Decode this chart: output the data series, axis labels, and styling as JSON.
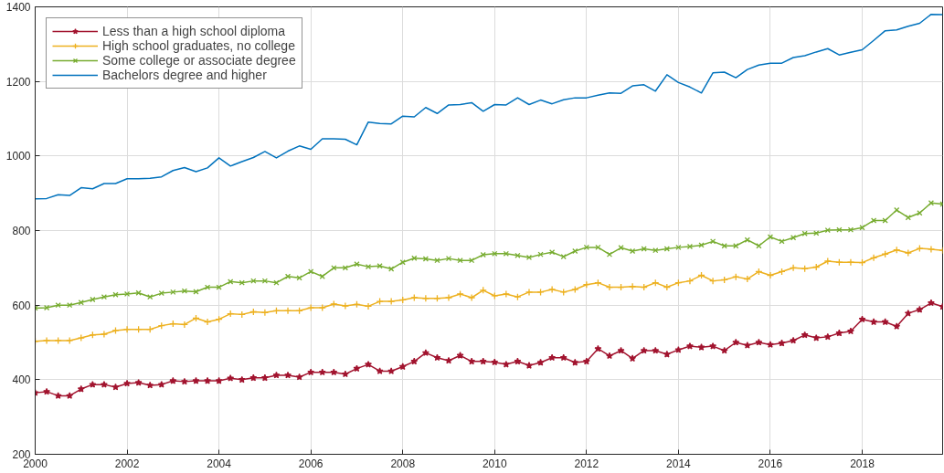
{
  "chart_data": {
    "type": "line",
    "x": [
      2000,
      2000.25,
      2000.5,
      2000.75,
      2001,
      2001.25,
      2001.5,
      2001.75,
      2002,
      2002.25,
      2002.5,
      2002.75,
      2003,
      2003.25,
      2003.5,
      2003.75,
      2004,
      2004.25,
      2004.5,
      2004.75,
      2005,
      2005.25,
      2005.5,
      2005.75,
      2006,
      2006.25,
      2006.5,
      2006.75,
      2007,
      2007.25,
      2007.5,
      2007.75,
      2008,
      2008.25,
      2008.5,
      2008.75,
      2009,
      2009.25,
      2009.5,
      2009.75,
      2010,
      2010.25,
      2010.5,
      2010.75,
      2011,
      2011.25,
      2011.5,
      2011.75,
      2012,
      2012.25,
      2012.5,
      2012.75,
      2013,
      2013.25,
      2013.5,
      2013.75,
      2014,
      2014.25,
      2014.5,
      2014.75,
      2015,
      2015.25,
      2015.5,
      2015.75,
      2016,
      2016.25,
      2016.5,
      2016.75,
      2017,
      2017.25,
      2017.5,
      2017.75,
      2018,
      2018.25,
      2018.5,
      2018.75,
      2019,
      2019.25,
      2019.5,
      2019.75
    ],
    "series": [
      {
        "name": "Less than a high school diploma",
        "color": "#a2142f",
        "marker": "star",
        "values": [
          365,
          368,
          357,
          357,
          375,
          387,
          387,
          380,
          390,
          392,
          385,
          387,
          397,
          395,
          397,
          397,
          397,
          404,
          400,
          405,
          405,
          412,
          412,
          407,
          420,
          420,
          420,
          415,
          430,
          441,
          423,
          423,
          435,
          449,
          472,
          459,
          451,
          465,
          449,
          449,
          447,
          441,
          449,
          438,
          446,
          459,
          459,
          446,
          449,
          483,
          464,
          478,
          457,
          478,
          478,
          468,
          480,
          490,
          487,
          490,
          478,
          500,
          492,
          500,
          494,
          498,
          505,
          520,
          512,
          515,
          525,
          530,
          562,
          555,
          555,
          543,
          578,
          588,
          606,
          596
        ]
      },
      {
        "name": "High school graduates, no college",
        "color": "#edb120",
        "marker": "cross",
        "values": [
          503,
          505,
          505,
          505,
          512,
          520,
          522,
          532,
          535,
          535,
          535,
          545,
          550,
          548,
          565,
          555,
          562,
          577,
          575,
          582,
          580,
          585,
          585,
          585,
          593,
          593,
          603,
          598,
          602,
          597,
          610,
          610,
          614,
          620,
          618,
          618,
          620,
          630,
          620,
          640,
          625,
          630,
          622,
          635,
          635,
          642,
          635,
          642,
          655,
          660,
          648,
          648,
          650,
          648,
          660,
          648,
          660,
          665,
          680,
          665,
          668,
          676,
          670,
          690,
          680,
          690,
          700,
          698,
          702,
          718,
          715,
          715,
          714,
          727,
          737,
          748,
          740,
          752,
          750,
          747
        ]
      },
      {
        "name": "Some college or associate degree",
        "color": "#77ac30",
        "marker": "x",
        "values": [
          592,
          593,
          600,
          600,
          607,
          615,
          622,
          628,
          630,
          633,
          622,
          632,
          635,
          638,
          636,
          648,
          648,
          663,
          660,
          665,
          665,
          660,
          677,
          673,
          690,
          677,
          700,
          700,
          710,
          703,
          705,
          697,
          715,
          726,
          724,
          720,
          725,
          720,
          720,
          735,
          738,
          738,
          733,
          728,
          736,
          742,
          730,
          745,
          755,
          755,
          736,
          754,
          745,
          751,
          747,
          751,
          755,
          757,
          761,
          771,
          759,
          759,
          775,
          759,
          783,
          771,
          781,
          792,
          793,
          801,
          802,
          802,
          808,
          827,
          827,
          855,
          835,
          847,
          874,
          871
        ]
      },
      {
        "name": "Bachelors degree and higher",
        "color": "#0072bd",
        "marker": "none",
        "values": [
          885,
          886,
          896,
          894,
          915,
          912,
          926,
          926,
          939,
          939,
          940,
          944,
          961,
          969,
          958,
          968,
          995,
          973,
          985,
          996,
          1012,
          995,
          1013,
          1027,
          1018,
          1046,
          1046,
          1045,
          1030,
          1091,
          1087,
          1086,
          1107,
          1105,
          1130,
          1114,
          1137,
          1138,
          1143,
          1120,
          1138,
          1137,
          1156,
          1138,
          1150,
          1140,
          1151,
          1156,
          1156,
          1163,
          1169,
          1168,
          1188,
          1191,
          1174,
          1218,
          1197,
          1185,
          1169,
          1223,
          1225,
          1210,
          1232,
          1244,
          1249,
          1249,
          1264,
          1269,
          1279,
          1288,
          1271,
          1278,
          1285,
          1310,
          1336,
          1338,
          1348,
          1356,
          1380,
          1379
        ]
      }
    ],
    "xlim": [
      2000,
      2019.75
    ],
    "xticks": [
      2000,
      2002,
      2004,
      2006,
      2008,
      2010,
      2012,
      2014,
      2016,
      2018
    ],
    "ylim": [
      200,
      1400
    ],
    "yticks": [
      200,
      400,
      600,
      800,
      1000,
      1200,
      1400
    ],
    "grid": true,
    "legend": "top left",
    "line_style": "solid"
  }
}
